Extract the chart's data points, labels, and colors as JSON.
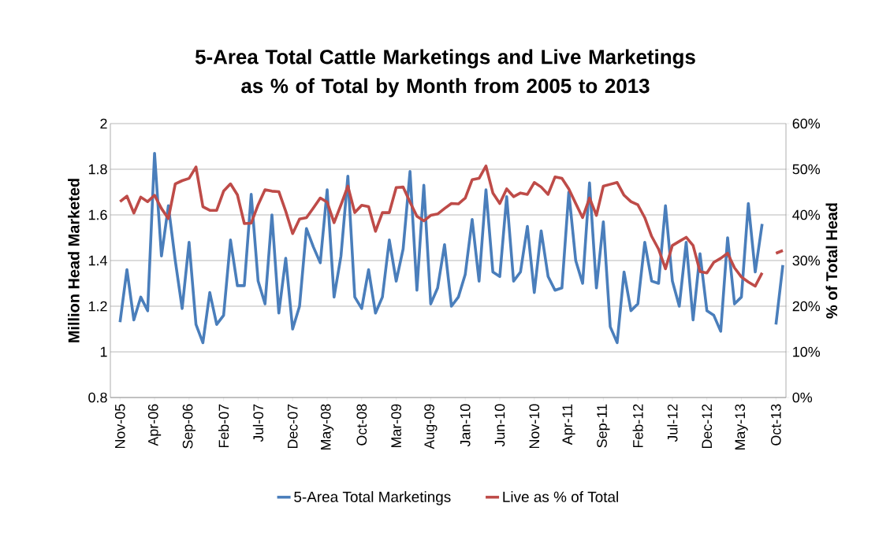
{
  "chart_data": {
    "type": "line",
    "title": "5-Area Total Cattle Marketings and Live Marketings as % of Total by Month from 2005 to 2013",
    "ylabel": "Million Head Marketed",
    "y2label": "% of Total Head",
    "categories": [
      "Nov-05",
      null,
      null,
      null,
      null,
      "Apr-06",
      null,
      null,
      null,
      null,
      "Sep-06",
      null,
      null,
      null,
      null,
      "Feb-07",
      null,
      null,
      null,
      null,
      "Jul-07",
      null,
      null,
      null,
      null,
      "Dec-07",
      null,
      null,
      null,
      null,
      "May-08",
      null,
      null,
      null,
      null,
      "Oct-08",
      null,
      null,
      null,
      null,
      "Mar-09",
      null,
      null,
      null,
      null,
      "Aug-09",
      null,
      null,
      null,
      null,
      "Jan-10",
      null,
      null,
      null,
      null,
      "Jun-10",
      null,
      null,
      null,
      null,
      "Nov-10",
      null,
      null,
      null,
      null,
      "Apr-11",
      null,
      null,
      null,
      null,
      "Sep-11",
      null,
      null,
      null,
      null,
      "Feb-12",
      null,
      null,
      null,
      null,
      "Jul-12",
      null,
      null,
      null,
      null,
      "Dec-12",
      null,
      null,
      null,
      null,
      "May-13",
      null,
      null,
      null,
      null,
      "Oct-13",
      null
    ],
    "series": [
      {
        "name": "5-Area Total Marketings",
        "color": "#4a7ebb",
        "values": [
          1.13,
          1.36,
          1.14,
          1.24,
          1.18,
          1.87,
          1.42,
          1.64,
          1.4,
          1.19,
          1.48,
          1.12,
          1.04,
          1.26,
          1.12,
          1.16,
          1.49,
          1.29,
          1.29,
          1.69,
          1.31,
          1.21,
          1.6,
          1.17,
          1.41,
          1.1,
          1.2,
          1.54,
          1.46,
          1.39,
          1.71,
          1.24,
          1.42,
          1.77,
          1.24,
          1.19,
          1.36,
          1.17,
          1.24,
          1.49,
          1.31,
          1.45,
          1.79,
          1.27,
          1.73,
          1.21,
          1.28,
          1.47,
          1.2,
          1.24,
          1.34,
          1.58,
          1.31,
          1.71,
          1.35,
          1.33,
          1.68,
          1.31,
          1.35,
          1.55,
          1.26,
          1.53,
          1.33,
          1.27,
          1.28,
          1.7,
          1.4,
          1.3,
          1.74,
          1.28,
          1.57,
          1.11,
          1.04,
          1.35,
          1.18,
          1.21,
          1.48,
          1.31,
          1.3,
          1.64,
          1.31,
          1.2,
          1.48,
          1.14,
          1.43,
          1.18,
          1.16,
          1.09,
          1.5,
          1.21,
          1.24,
          1.65,
          1.35,
          1.56,
          null,
          1.12,
          1.38
        ]
      },
      {
        "name": "Live as % of Total",
        "color": "#be4b48",
        "axis": "y2",
        "values": [
          42.9,
          44.1,
          40.4,
          43.9,
          42.9,
          44.3,
          41.4,
          39.2,
          46.8,
          47.5,
          48.0,
          50.5,
          41.8,
          41.0,
          41.0,
          45.2,
          46.8,
          44.4,
          38.1,
          38.2,
          42.2,
          45.5,
          45.2,
          45.1,
          40.8,
          35.9,
          39.1,
          39.4,
          41.5,
          43.7,
          42.8,
          38.3,
          42.2,
          46.3,
          40.5,
          42.1,
          41.8,
          36.4,
          40.5,
          40.5,
          46.0,
          46.1,
          42.8,
          39.7,
          38.7,
          39.9,
          40.2,
          41.4,
          42.5,
          42.4,
          43.7,
          47.7,
          48.0,
          50.7,
          44.8,
          42.5,
          45.7,
          44.0,
          44.8,
          44.5,
          47.1,
          46.1,
          44.5,
          48.3,
          48.0,
          45.7,
          42.5,
          39.4,
          43.7,
          39.9,
          46.3,
          46.7,
          47.1,
          44.3,
          42.9,
          42.2,
          39.4,
          35.3,
          32.5,
          28.2,
          33.3,
          34.2,
          35.1,
          33.3,
          27.6,
          27.3,
          29.6,
          30.5,
          31.6,
          28.4,
          26.4,
          25.3,
          24.4,
          27.3,
          null,
          31.6,
          32.2
        ]
      }
    ],
    "ylim": [
      0.8,
      2
    ],
    "yticks": [
      0.8,
      1,
      1.2,
      1.4,
      1.6,
      1.8,
      2
    ],
    "y2lim": [
      0,
      60
    ],
    "y2ticks": [
      {
        "value": 0,
        "label": "0%"
      },
      {
        "value": 10,
        "label": "10%"
      },
      {
        "value": 20,
        "label": "20%"
      },
      {
        "value": 30,
        "label": "30%"
      },
      {
        "value": 40,
        "label": "40%"
      },
      {
        "value": 50,
        "label": "50%"
      },
      {
        "value": 60,
        "label": "60%"
      }
    ],
    "grid": "y",
    "legend": "bottom"
  }
}
